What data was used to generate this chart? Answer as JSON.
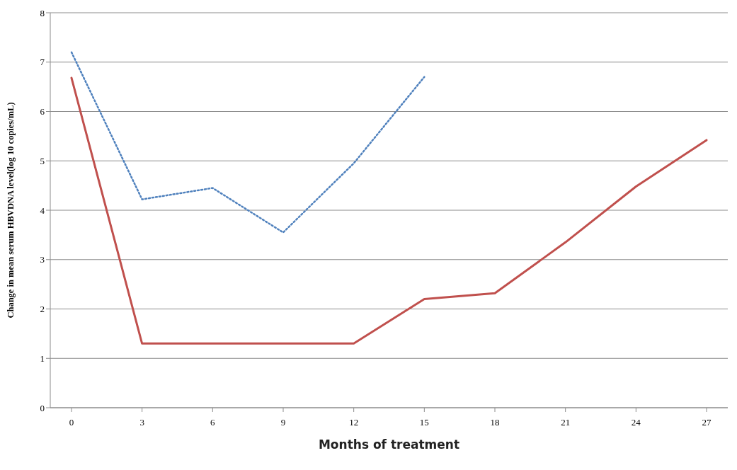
{
  "chart_data": {
    "type": "line",
    "xlabel": "Months of treatment",
    "ylabel": "Change in mean serum HBVDNA level(log 10 copies/mL)",
    "categories": [
      "0",
      "3",
      "6",
      "9",
      "12",
      "15",
      "18",
      "21",
      "24",
      "27"
    ],
    "series": [
      {
        "color": "#4f81bd",
        "line_style": "dotted",
        "values": [
          7.2,
          4.22,
          4.45,
          3.55,
          4.95,
          6.7,
          null,
          null,
          null,
          null
        ]
      },
      {
        "color": "#c0504d",
        "line_style": "solid",
        "values": [
          6.68,
          1.3,
          1.3,
          1.3,
          1.3,
          2.2,
          2.32,
          3.35,
          4.48,
          5.42
        ]
      }
    ],
    "ylim": [
      0,
      8
    ],
    "yticks": [
      0,
      1,
      2,
      3,
      4,
      5,
      6,
      7,
      8
    ],
    "grid": "y",
    "legend": false,
    "marker": "none"
  }
}
